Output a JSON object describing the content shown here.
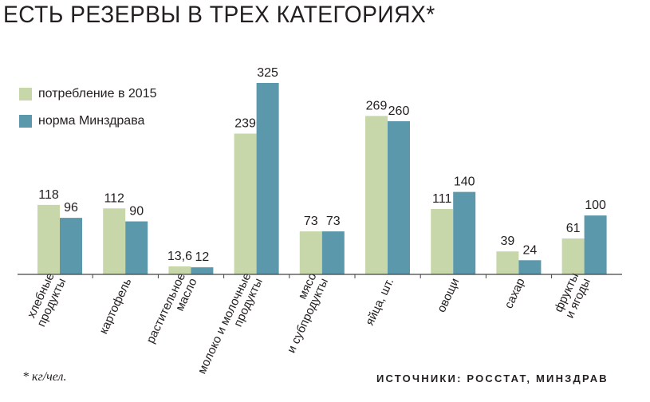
{
  "title": "ЕСТЬ РЕЗЕРВЫ В ТРЕХ КАТЕГОРИЯХ*",
  "footnote": "* кг/чел.",
  "sources": "ИСТОЧНИКИ: РОССТАТ, МИНЗДРАВ",
  "colors": {
    "consumption": "#c7d7a9",
    "norm": "#5b98ab",
    "axis": "#444444",
    "text": "#231f20"
  },
  "chart_data": {
    "type": "bar",
    "categories": [
      [
        "хлебные",
        "продукты"
      ],
      [
        "картофель"
      ],
      [
        "растительное",
        "масло"
      ],
      [
        "молоко и молочные",
        "продукты"
      ],
      [
        "мясо",
        "и субпродукты"
      ],
      [
        "яйца, шт."
      ],
      [
        "овощи"
      ],
      [
        "сахар"
      ],
      [
        "фрукты",
        "и ягоды"
      ]
    ],
    "series": [
      {
        "name": "потребление в 2015",
        "values": [
          118,
          112,
          13.6,
          239,
          73,
          269,
          111,
          39,
          61
        ],
        "labels": [
          "118",
          "112",
          "13,6",
          "239",
          "73",
          "269",
          "111",
          "39",
          "61"
        ]
      },
      {
        "name": "норма Минздрава",
        "values": [
          96,
          90,
          12,
          325,
          73,
          260,
          140,
          24,
          100
        ],
        "labels": [
          "96",
          "90",
          "12",
          "325",
          "73",
          "260",
          "140",
          "24",
          "100"
        ]
      }
    ],
    "legend_position": "top-left",
    "grid": false,
    "ylim": [
      0,
      325
    ]
  }
}
